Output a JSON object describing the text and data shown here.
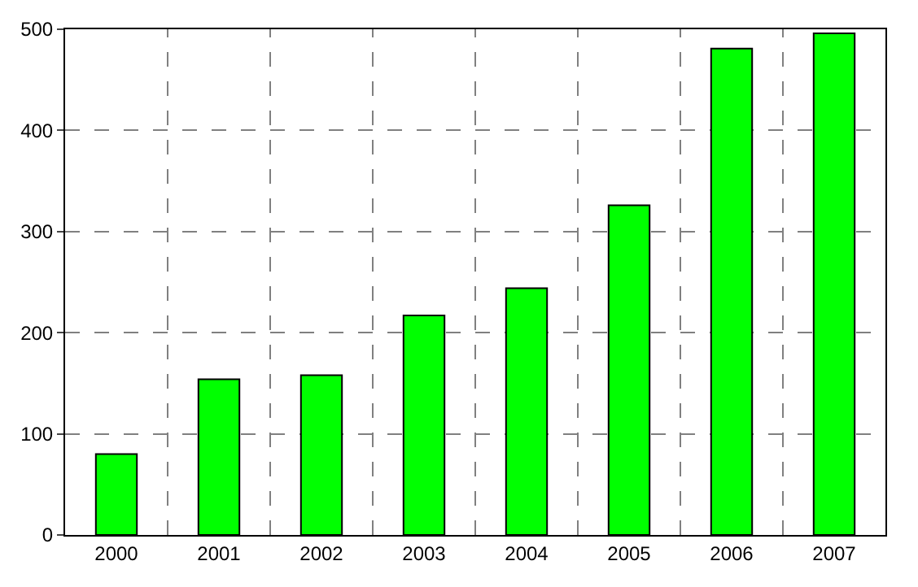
{
  "chart_data": {
    "type": "bar",
    "categories": [
      "2000",
      "2001",
      "2002",
      "2003",
      "2004",
      "2005",
      "2006",
      "2007"
    ],
    "values": [
      80,
      154,
      158,
      217,
      244,
      326,
      481,
      496
    ],
    "color": "#00ff00",
    "ylim": [
      0,
      500
    ],
    "yticks": [
      0,
      100,
      200,
      300,
      400,
      500
    ],
    "grid": true
  }
}
